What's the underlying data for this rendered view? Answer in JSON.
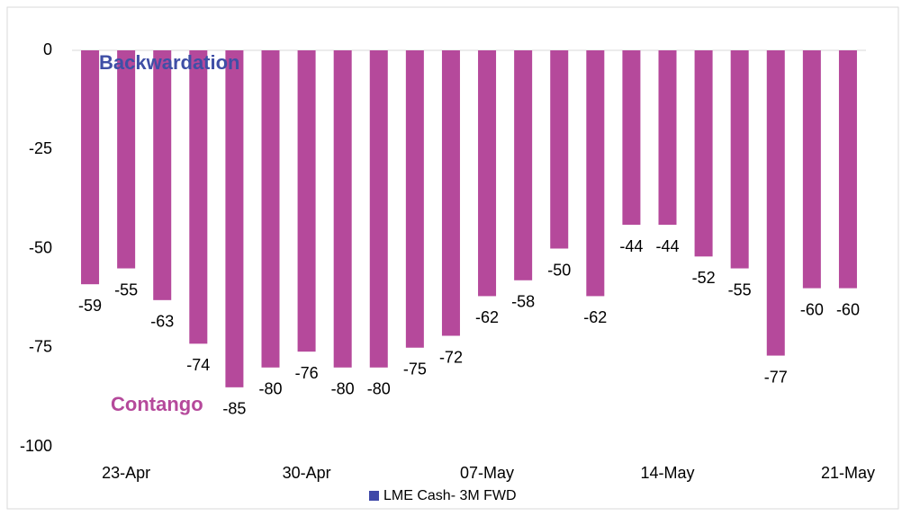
{
  "chart_data": {
    "type": "bar",
    "categories": [
      null,
      "23-Apr",
      null,
      null,
      null,
      null,
      "30-Apr",
      null,
      null,
      null,
      null,
      "07-May",
      null,
      null,
      null,
      null,
      "14-May",
      null,
      null,
      null,
      null,
      "21-May"
    ],
    "series": [
      {
        "name": "LME Cash- 3M FWD",
        "color": "#b5499b",
        "legend_color": "#3f48a8",
        "values": [
          -59,
          -55,
          -63,
          -74,
          -85,
          -80,
          -76,
          -80,
          -80,
          -75,
          -72,
          -62,
          -58,
          -50,
          -62,
          -44,
          -44,
          -52,
          -55,
          -77,
          -60,
          -60
        ]
      }
    ],
    "ylim": [
      -100,
      0
    ],
    "yticks": [
      0,
      -25,
      -50,
      -75,
      -100
    ],
    "grid": false,
    "legend": "bottom",
    "annotations": [
      {
        "text": "Backwardation",
        "color": "#3f4fa6"
      },
      {
        "text": "Contango",
        "color": "#b5499b"
      }
    ]
  }
}
